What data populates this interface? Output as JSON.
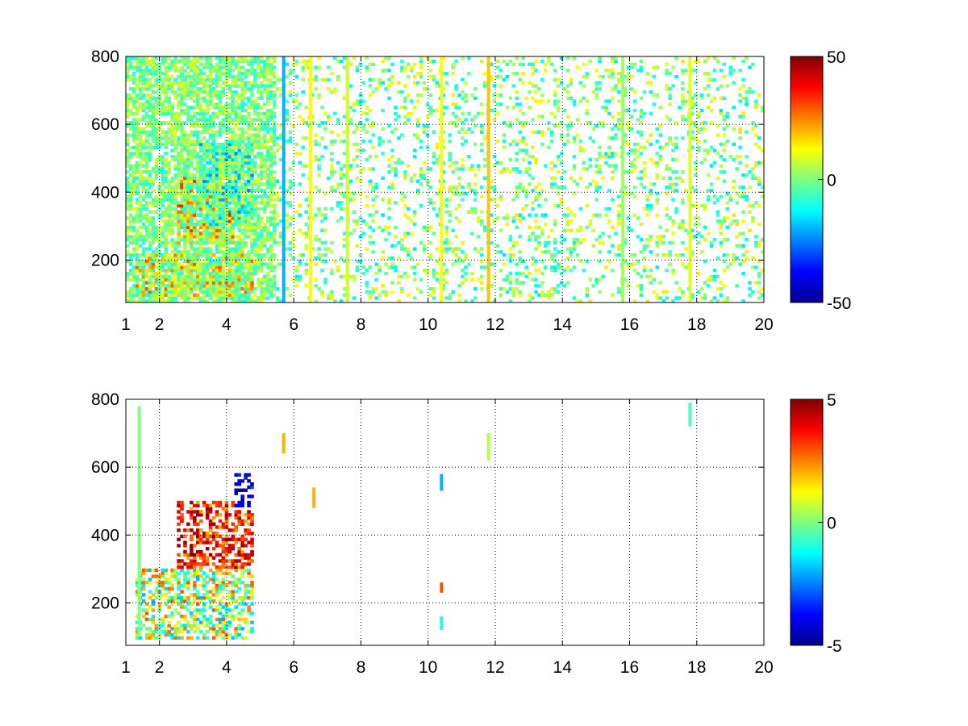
{
  "chart_data": [
    {
      "type": "heatmap",
      "title": "",
      "xlabel": "",
      "ylabel": "",
      "xlim": [
        1,
        20
      ],
      "ylim": [
        75,
        800
      ],
      "x_ticks": [
        1,
        2,
        4,
        6,
        8,
        10,
        12,
        14,
        16,
        18,
        20
      ],
      "y_ticks": [
        200,
        400,
        600,
        800
      ],
      "grid": true,
      "colormap": "jet",
      "colorbar": {
        "range": [
          -50,
          50
        ],
        "ticks": [
          50,
          0,
          -50
        ]
      },
      "features": [
        {
          "x": [
            1.3,
            4.8
          ],
          "y": [
            90,
            220
          ],
          "value_range": [
            10,
            30
          ],
          "description": "warm band"
        },
        {
          "x": [
            2.5,
            4.2
          ],
          "y": [
            250,
            450
          ],
          "value_range": [
            15,
            35
          ],
          "description": "warm region"
        },
        {
          "x": [
            3.2,
            4.8
          ],
          "y": [
            300,
            550
          ],
          "value_range": [
            -25,
            -10
          ],
          "description": "cool patch"
        },
        {
          "x": [
            1,
            5.5
          ],
          "y": [
            75,
            800
          ],
          "value_range": [
            -10,
            10
          ],
          "description": "dense noise"
        },
        {
          "x": [
            5.5,
            20
          ],
          "y": [
            75,
            800
          ],
          "value_range": [
            -15,
            15
          ],
          "description": "sparse noise"
        }
      ],
      "vertical_streaks": [
        {
          "x": 5.7,
          "value": -20
        },
        {
          "x": 6.5,
          "value": 12
        },
        {
          "x": 7.6,
          "value": 8
        },
        {
          "x": 10.4,
          "value": 12
        },
        {
          "x": 11.8,
          "value": 18
        },
        {
          "x": 15.8,
          "value": 3
        },
        {
          "x": 17.8,
          "value": 10
        }
      ]
    },
    {
      "type": "heatmap",
      "title": "",
      "xlabel": "",
      "ylabel": "",
      "xlim": [
        1,
        20
      ],
      "ylim": [
        75,
        800
      ],
      "x_ticks": [
        1,
        2,
        4,
        6,
        8,
        10,
        12,
        14,
        16,
        18,
        20
      ],
      "y_ticks": [
        200,
        400,
        600,
        800
      ],
      "grid": true,
      "colormap": "jet",
      "colorbar": {
        "range": [
          -5,
          5
        ],
        "ticks": [
          5,
          0,
          -5
        ]
      },
      "features": [
        {
          "x": [
            1.3,
            4.8
          ],
          "y": [
            90,
            300
          ],
          "value_range": [
            -2,
            3
          ],
          "description": "scattered cloud"
        },
        {
          "x": [
            2.5,
            4.8
          ],
          "y": [
            300,
            500
          ],
          "value_range": [
            2,
            5
          ],
          "description": "hot region"
        },
        {
          "x": [
            4.2,
            4.8
          ],
          "y": [
            480,
            580
          ],
          "value_range": [
            -5,
            -3
          ],
          "description": "cold patch"
        }
      ],
      "vertical_streaks": [
        {
          "x": 1.4,
          "y": [
            100,
            780
          ],
          "value": 0
        },
        {
          "x": 5.7,
          "y": [
            640,
            700
          ],
          "value": 2
        },
        {
          "x": 6.6,
          "y": [
            480,
            540
          ],
          "value": 2
        },
        {
          "x": 10.4,
          "y": [
            530,
            580
          ],
          "value": -2
        },
        {
          "x": 10.4,
          "y": [
            230,
            260
          ],
          "value": 3
        },
        {
          "x": 10.4,
          "y": [
            120,
            160
          ],
          "value": -1
        },
        {
          "x": 11.8,
          "y": [
            620,
            700
          ],
          "value": 0.5
        },
        {
          "x": 17.8,
          "y": [
            720,
            790
          ],
          "value": -0.5
        }
      ]
    }
  ]
}
